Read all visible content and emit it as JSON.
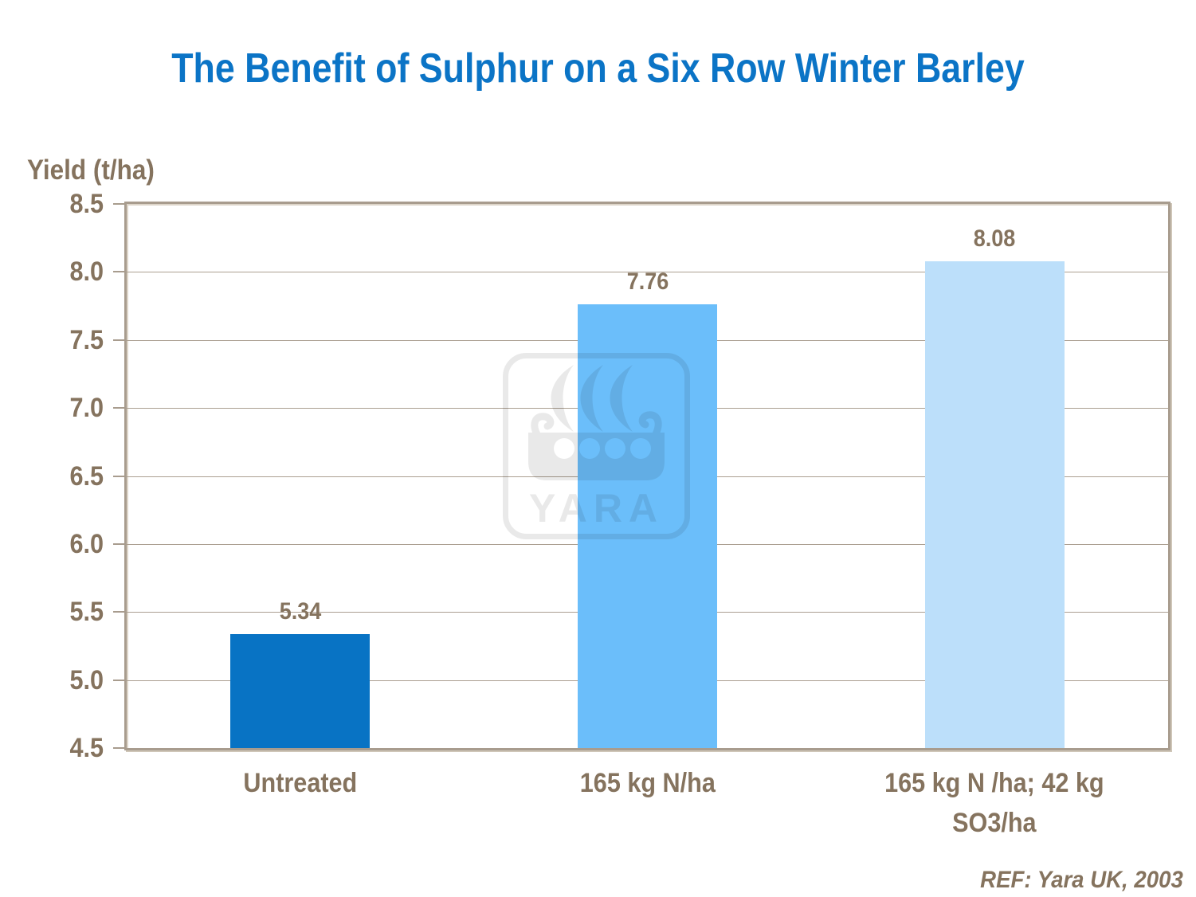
{
  "footer": {
    "ref": "REF: Yara UK, 2003"
  },
  "watermark": {
    "icon": "viking-ship-logo",
    "text": "YARA"
  },
  "colors": {
    "title": "#0B74C6",
    "text": "#85735E",
    "frame": "#A89C8E",
    "grid": "#AB9F91",
    "watermark": "#E9E9E9",
    "background": "#FFFFFF"
  },
  "chart_data": {
    "type": "bar",
    "title": "The Benefit of Sulphur on a Six Row Winter Barley",
    "ylabel": "Yield (t/ha)",
    "xlabel": "",
    "ylim": [
      4.5,
      8.5
    ],
    "ytick_step": 0.5,
    "ytick_labels": [
      "8.5",
      "8.0",
      "7.5",
      "7.0",
      "6.5",
      "6.0",
      "5.5",
      "5.0",
      "4.5"
    ],
    "categories": [
      "Untreated",
      "165 kg N/ha",
      "165 kg N /ha; 42 kg SO3/ha"
    ],
    "category_lines": [
      [
        "Untreated"
      ],
      [
        "165 kg N/ha"
      ],
      [
        "165 kg N /ha; 42 kg",
        "SO3/ha"
      ]
    ],
    "values": [
      5.34,
      7.76,
      8.08
    ],
    "data_labels": [
      "5.34",
      "7.76",
      "8.08"
    ],
    "bar_colors": [
      "#0873C4",
      "#6BBEFA",
      "#BCDFFA"
    ],
    "grid": true,
    "legend": false
  }
}
